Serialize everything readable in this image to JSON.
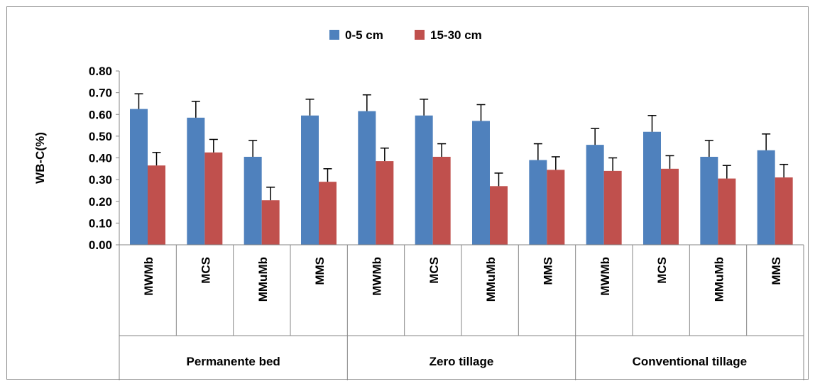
{
  "chart_data": {
    "type": "bar",
    "title": "",
    "ylabel": "WB-C(%)",
    "xlabel": "",
    "ylim": [
      0,
      0.8
    ],
    "yticks": [
      "0.00",
      "0.10",
      "0.20",
      "0.30",
      "0.40",
      "0.50",
      "0.60",
      "0.70",
      "0.80"
    ],
    "grid": false,
    "legend_position": "top",
    "groups": [
      "Permanente bed",
      "Zero tillage",
      "Conventional tillage"
    ],
    "categories": [
      "MWMb",
      "MCS",
      "MMuMb",
      "MMS",
      "MWMb",
      "MCS",
      "MMuMb",
      "MMS",
      "MWMb",
      "MCS",
      "MMuMb",
      "MMS"
    ],
    "series": [
      {
        "name": "0-5 cm",
        "color": "#4f81bd",
        "values": [
          0.625,
          0.585,
          0.405,
          0.595,
          0.615,
          0.595,
          0.57,
          0.39,
          0.46,
          0.52,
          0.405,
          0.435
        ],
        "errors": [
          0.07,
          0.075,
          0.075,
          0.075,
          0.075,
          0.075,
          0.075,
          0.075,
          0.075,
          0.075,
          0.075,
          0.075
        ]
      },
      {
        "name": "15-30 cm",
        "color": "#c0504d",
        "values": [
          0.365,
          0.425,
          0.205,
          0.29,
          0.385,
          0.405,
          0.27,
          0.345,
          0.34,
          0.35,
          0.305,
          0.31
        ],
        "errors": [
          0.06,
          0.06,
          0.06,
          0.06,
          0.06,
          0.06,
          0.06,
          0.06,
          0.06,
          0.06,
          0.06,
          0.06
        ]
      }
    ]
  }
}
